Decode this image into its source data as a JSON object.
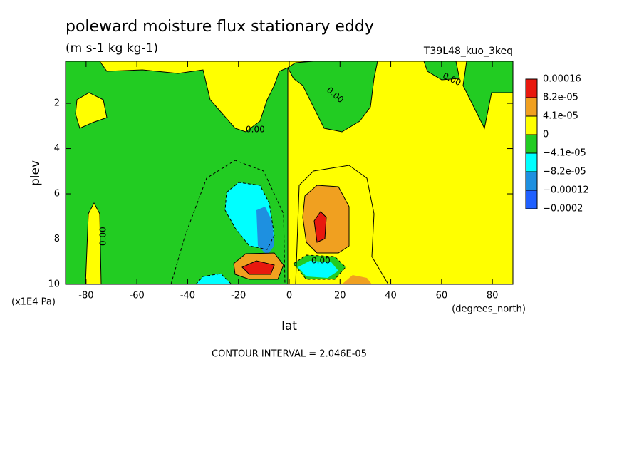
{
  "chart_data": {
    "type": "contour",
    "title": "poleward moisture flux stationary eddy",
    "subtitle": "(m s-1 kg kg-1)",
    "dataset": "T39L48_kuo_3keq",
    "x_label": "lat",
    "x_units": "(degrees_north)",
    "y_label": "plev",
    "y_units": "(x1E4 Pa)",
    "xlim": [
      -88.1,
      88.1
    ],
    "xticks": [
      -80,
      -60,
      -40,
      -20,
      0,
      20,
      40,
      60,
      80
    ],
    "ylim": [
      10,
      0.14
    ],
    "yticks": [
      2,
      4,
      6,
      8,
      10
    ],
    "contour_labels": [
      "0.00",
      "0.00",
      "0.00",
      "0.00",
      "0.00"
    ],
    "footer": "CONTOUR INTERVAL = 2.046E-05",
    "colorbar": {
      "levels": [
        0.00016,
        {
          "value": 8.2e-05,
          "label": "8.2e-05"
        },
        {
          "value": 4.1e-05,
          "label": "4.1e-05"
        },
        0,
        {
          "value": -4.1e-05,
          "label": "−4.1e-05"
        },
        {
          "value": -8.2e-05,
          "label": "−8.2e-05"
        },
        {
          "value": -0.00012,
          "label": "−0.00012"
        },
        {
          "value": -0.0002,
          "label": "−0.0002"
        }
      ],
      "colors": [
        "#e8180e",
        "#f0a020",
        "#ffff00",
        "#22cc22",
        "#00ffff",
        "#1e90e0",
        "#2060ff"
      ]
    }
  }
}
